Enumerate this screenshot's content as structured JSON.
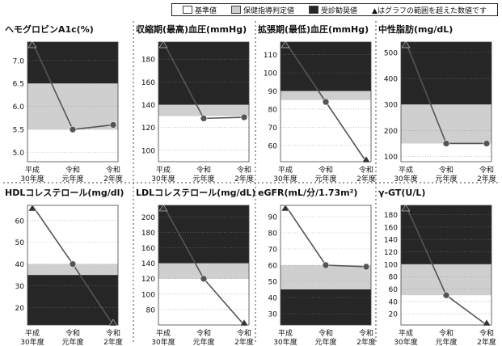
{
  "legend": {
    "items": [
      {
        "label": "基準値",
        "color": "#ffffff"
      },
      {
        "label": "保健指導判定値",
        "color": "#cfcfcf"
      },
      {
        "label": "受診勧奨値",
        "color": "#262626"
      }
    ],
    "note": "▲はグラフの範囲を超えた数値です"
  },
  "colors": {
    "normal": "#ffffff",
    "guidance": "#cfcfcf",
    "referral": "#262626",
    "line": "#555555"
  },
  "chart_data": [
    {
      "type": "line",
      "title": "ヘモグロビンA1c(%)",
      "categories": [
        "平成\n30年度",
        "令和\n元年度",
        "令和\n2年度"
      ],
      "values": [
        7.4,
        5.5,
        5.6
      ],
      "out_of_range": [
        true,
        false,
        false
      ],
      "ylim": [
        4.8,
        7.4
      ],
      "yticks": [
        5.0,
        5.5,
        6.0,
        6.5,
        7.0
      ],
      "ytick_labels": [
        "5.0",
        "5.5",
        "6.0",
        "6.5",
        "7.0"
      ],
      "bands": [
        {
          "from": 4.8,
          "to": 5.5,
          "level": "normal"
        },
        {
          "from": 5.5,
          "to": 6.5,
          "level": "guidance"
        },
        {
          "from": 6.5,
          "to": 7.4,
          "level": "referral"
        }
      ]
    },
    {
      "type": "line",
      "title": "収縮期(最高)血圧(mmHg)",
      "categories": [
        "平成\n30年度",
        "令和\n元年度",
        "令和\n2年度"
      ],
      "values": [
        195,
        128,
        129
      ],
      "out_of_range": [
        true,
        false,
        false
      ],
      "ylim": [
        90,
        195
      ],
      "yticks": [
        100,
        120,
        140,
        160,
        180
      ],
      "ytick_labels": [
        "100",
        "120",
        "140",
        "160",
        "180"
      ],
      "bands": [
        {
          "from": 90,
          "to": 130,
          "level": "normal"
        },
        {
          "from": 130,
          "to": 140,
          "level": "guidance"
        },
        {
          "from": 140,
          "to": 195,
          "level": "referral"
        }
      ]
    },
    {
      "type": "line",
      "title": "拡張期(最低)血圧(mmHg)",
      "categories": [
        "平成\n30年度",
        "令和\n元年度",
        "令和\n2年度"
      ],
      "values": [
        117,
        84,
        51
      ],
      "out_of_range": [
        true,
        false,
        true
      ],
      "ylim": [
        51,
        117
      ],
      "yticks": [
        60,
        70,
        80,
        90,
        100,
        110
      ],
      "ytick_labels": [
        "60",
        "70",
        "80",
        "90",
        "100",
        "110"
      ],
      "bands": [
        {
          "from": 51,
          "to": 85,
          "level": "normal"
        },
        {
          "from": 85,
          "to": 90,
          "level": "guidance"
        },
        {
          "from": 90,
          "to": 117,
          "level": "referral"
        }
      ]
    },
    {
      "type": "line",
      "title": "中性脂肪(mg/dL)",
      "categories": [
        "平成\n30年度",
        "令和\n元年度",
        "令和\n2年度"
      ],
      "values": [
        540,
        150,
        150
      ],
      "out_of_range": [
        true,
        false,
        false
      ],
      "ylim": [
        80,
        540
      ],
      "yticks": [
        100,
        200,
        300,
        400,
        500
      ],
      "ytick_labels": [
        "100",
        "200",
        "300",
        "400",
        "500"
      ],
      "bands": [
        {
          "from": 80,
          "to": 150,
          "level": "normal"
        },
        {
          "from": 150,
          "to": 300,
          "level": "guidance"
        },
        {
          "from": 300,
          "to": 540,
          "level": "referral"
        }
      ]
    },
    {
      "type": "line",
      "title": "HDLコレステロール(mg/dl)",
      "categories": [
        "平成\n30年度",
        "令和\n元年度",
        "令和\n2年度"
      ],
      "values": [
        67,
        40,
        12
      ],
      "out_of_range": [
        true,
        false,
        true
      ],
      "ylim": [
        12,
        67
      ],
      "yticks": [
        20,
        30,
        40,
        50,
        60
      ],
      "ytick_labels": [
        "20",
        "30",
        "40",
        "50",
        "60"
      ],
      "bands": [
        {
          "from": 12,
          "to": 35,
          "level": "referral"
        },
        {
          "from": 35,
          "to": 40,
          "level": "guidance"
        },
        {
          "from": 40,
          "to": 67,
          "level": "normal"
        }
      ]
    },
    {
      "type": "line",
      "title": "LDLコレステロール(mg/dL)",
      "categories": [
        "平成\n30年度",
        "令和\n元年度",
        "令和\n2年度"
      ],
      "values": [
        215,
        120,
        60
      ],
      "out_of_range": [
        true,
        false,
        true
      ],
      "ylim": [
        60,
        215
      ],
      "yticks": [
        80,
        100,
        120,
        140,
        160,
        180,
        200
      ],
      "ytick_labels": [
        "80",
        "100",
        "120",
        "140",
        "160",
        "180",
        "200"
      ],
      "bands": [
        {
          "from": 60,
          "to": 120,
          "level": "normal"
        },
        {
          "from": 120,
          "to": 140,
          "level": "guidance"
        },
        {
          "from": 140,
          "to": 215,
          "level": "referral"
        }
      ]
    },
    {
      "type": "line",
      "title": "eGFR(mL/分/1.73m²)",
      "categories": [
        "平成\n30年度",
        "令和\n元年度",
        "令和\n2年度"
      ],
      "values": [
        97,
        60,
        59
      ],
      "out_of_range": [
        true,
        false,
        false
      ],
      "ylim": [
        23,
        97
      ],
      "yticks": [
        30,
        40,
        50,
        60,
        70,
        80,
        90
      ],
      "ytick_labels": [
        "30",
        "40",
        "50",
        "60",
        "70",
        "80",
        "90"
      ],
      "bands": [
        {
          "from": 23,
          "to": 45,
          "level": "referral"
        },
        {
          "from": 45,
          "to": 60,
          "level": "guidance"
        },
        {
          "from": 60,
          "to": 97,
          "level": "normal"
        }
      ]
    },
    {
      "type": "line",
      "title": "γ-GT(U/L)",
      "categories": [
        "平成\n30年度",
        "令和\n元年度",
        "令和\n2年度"
      ],
      "values": [
        195,
        50,
        2
      ],
      "out_of_range": [
        true,
        false,
        true
      ],
      "ylim": [
        2,
        195
      ],
      "yticks": [
        20,
        40,
        60,
        80,
        100,
        120,
        140,
        160,
        180
      ],
      "ytick_labels": [
        "20",
        "40",
        "60",
        "80",
        "100",
        "120",
        "140",
        "160",
        "180"
      ],
      "bands": [
        {
          "from": 2,
          "to": 50,
          "level": "normal"
        },
        {
          "from": 50,
          "to": 100,
          "level": "guidance"
        },
        {
          "from": 100,
          "to": 195,
          "level": "referral"
        }
      ]
    }
  ]
}
